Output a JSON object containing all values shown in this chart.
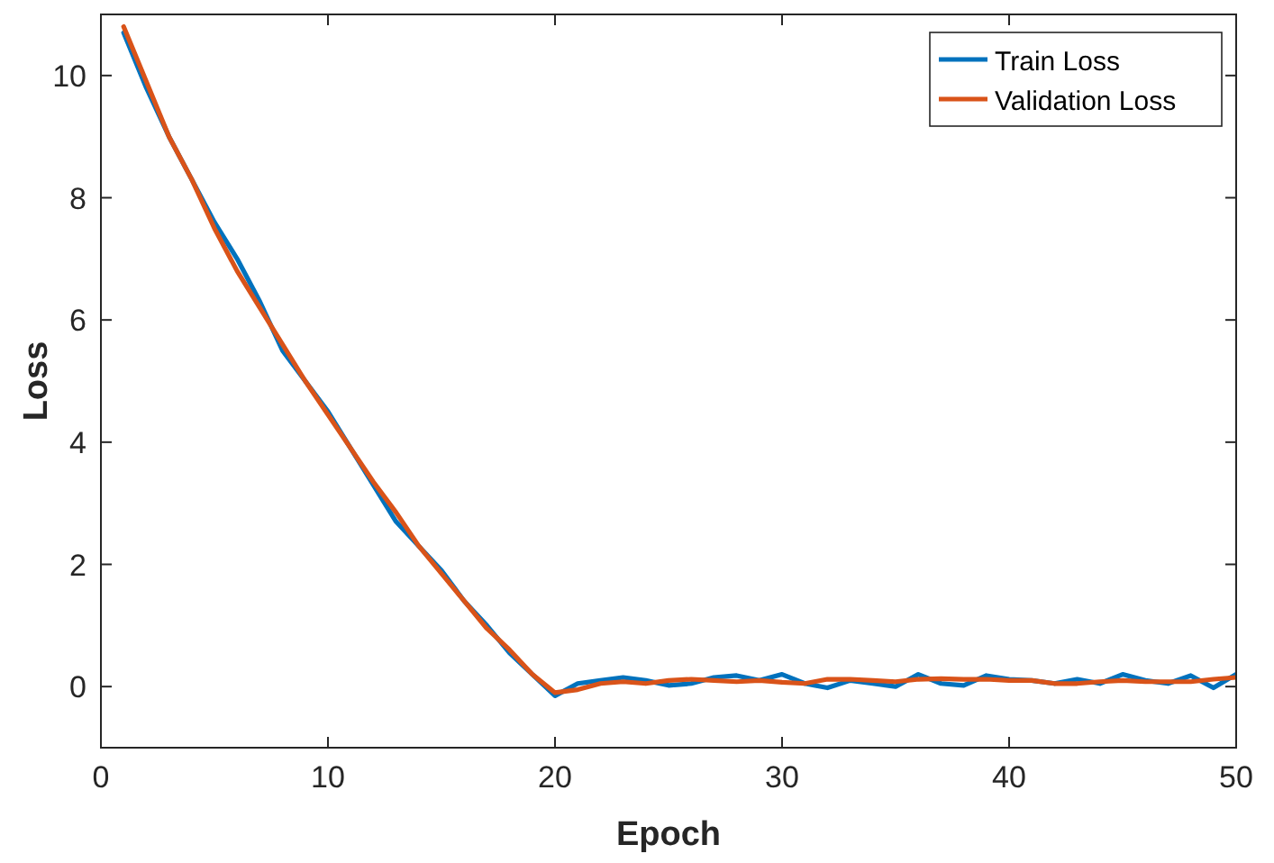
{
  "chart_data": {
    "type": "line",
    "xlabel": "Epoch",
    "ylabel": "Loss",
    "xlim": [
      0,
      50
    ],
    "ylim": [
      -1,
      11
    ],
    "xticks": [
      0,
      10,
      20,
      30,
      40,
      50
    ],
    "yticks": [
      0,
      2,
      4,
      6,
      8,
      10
    ],
    "legend": "top right",
    "grid": false,
    "line_style": "solid",
    "marker": "none",
    "x": [
      1,
      2,
      3,
      4,
      5,
      6,
      7,
      8,
      9,
      10,
      11,
      12,
      13,
      14,
      15,
      16,
      17,
      18,
      19,
      20,
      21,
      22,
      23,
      24,
      25,
      26,
      27,
      28,
      29,
      30,
      31,
      32,
      33,
      34,
      35,
      36,
      37,
      38,
      39,
      40,
      41,
      42,
      43,
      44,
      45,
      46,
      47,
      48,
      49,
      50
    ],
    "series": [
      {
        "name": "Train Loss",
        "color": "#0072bd",
        "values": [
          10.7,
          9.8,
          9.0,
          8.3,
          7.6,
          7.0,
          6.3,
          5.5,
          5.0,
          4.5,
          3.9,
          3.3,
          2.7,
          2.3,
          1.9,
          1.4,
          1.0,
          0.55,
          0.2,
          -0.15,
          0.05,
          0.1,
          0.15,
          0.1,
          0.02,
          0.05,
          0.15,
          0.18,
          0.1,
          0.2,
          0.05,
          -0.02,
          0.1,
          0.05,
          0.0,
          0.2,
          0.05,
          0.02,
          0.18,
          0.12,
          0.1,
          0.05,
          0.12,
          0.05,
          0.2,
          0.1,
          0.05,
          0.18,
          -0.02,
          0.2
        ]
      },
      {
        "name": "Validation Loss",
        "color": "#d95319",
        "values": [
          10.8,
          9.9,
          9.0,
          8.3,
          7.5,
          6.8,
          6.2,
          5.6,
          5.0,
          4.45,
          3.9,
          3.35,
          2.85,
          2.3,
          1.85,
          1.4,
          0.95,
          0.6,
          0.2,
          -0.1,
          -0.05,
          0.05,
          0.08,
          0.05,
          0.1,
          0.12,
          0.1,
          0.08,
          0.1,
          0.07,
          0.05,
          0.12,
          0.12,
          0.1,
          0.08,
          0.12,
          0.13,
          0.12,
          0.12,
          0.1,
          0.1,
          0.05,
          0.05,
          0.08,
          0.1,
          0.08,
          0.08,
          0.08,
          0.12,
          0.15
        ]
      }
    ]
  }
}
